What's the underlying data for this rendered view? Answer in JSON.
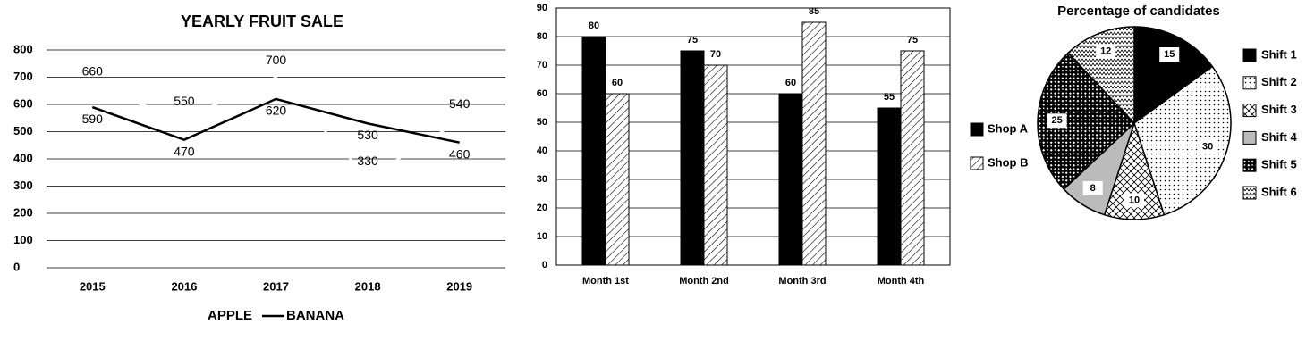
{
  "chart_data": [
    {
      "type": "line",
      "title": "YEARLY FRUIT SALE",
      "categories": [
        "2015",
        "2016",
        "2017",
        "2018",
        "2019"
      ],
      "series": [
        {
          "name": "APPLE",
          "color": "#ffffff",
          "values": [
            660,
            550,
            700,
            330,
            540
          ]
        },
        {
          "name": "BANANA",
          "color": "#000000",
          "values": [
            590,
            470,
            620,
            530,
            460
          ]
        }
      ],
      "ylim": [
        0,
        800
      ],
      "yticks": [
        0,
        100,
        200,
        300,
        400,
        500,
        600,
        700,
        800
      ],
      "grid": true,
      "legend": "bottom"
    },
    {
      "type": "bar",
      "categories": [
        "Month 1st",
        "Month 2nd",
        "Month 3rd",
        "Month 4th"
      ],
      "series": [
        {
          "name": "Shop A",
          "color": "#000000",
          "pattern": "solid",
          "values": [
            80,
            75,
            60,
            55
          ]
        },
        {
          "name": "Shop B",
          "color": "#000000",
          "pattern": "hatch",
          "values": [
            60,
            70,
            85,
            75
          ]
        }
      ],
      "ylim": [
        0,
        90
      ],
      "yticks": [
        0,
        10,
        20,
        30,
        40,
        50,
        60,
        70,
        80,
        90
      ],
      "grid": true,
      "legend": "right"
    },
    {
      "type": "pie",
      "title": "Percentage of candidates",
      "categories": [
        "Shift 1",
        "Shift 2",
        "Shift 3",
        "Shift 4",
        "Shift 5",
        "Shift 6"
      ],
      "values": [
        15,
        30,
        10,
        8,
        25,
        12
      ],
      "patterns": [
        "solid",
        "dots",
        "diamond",
        "gray",
        "checker",
        "zigzag"
      ],
      "legend": "right"
    }
  ]
}
